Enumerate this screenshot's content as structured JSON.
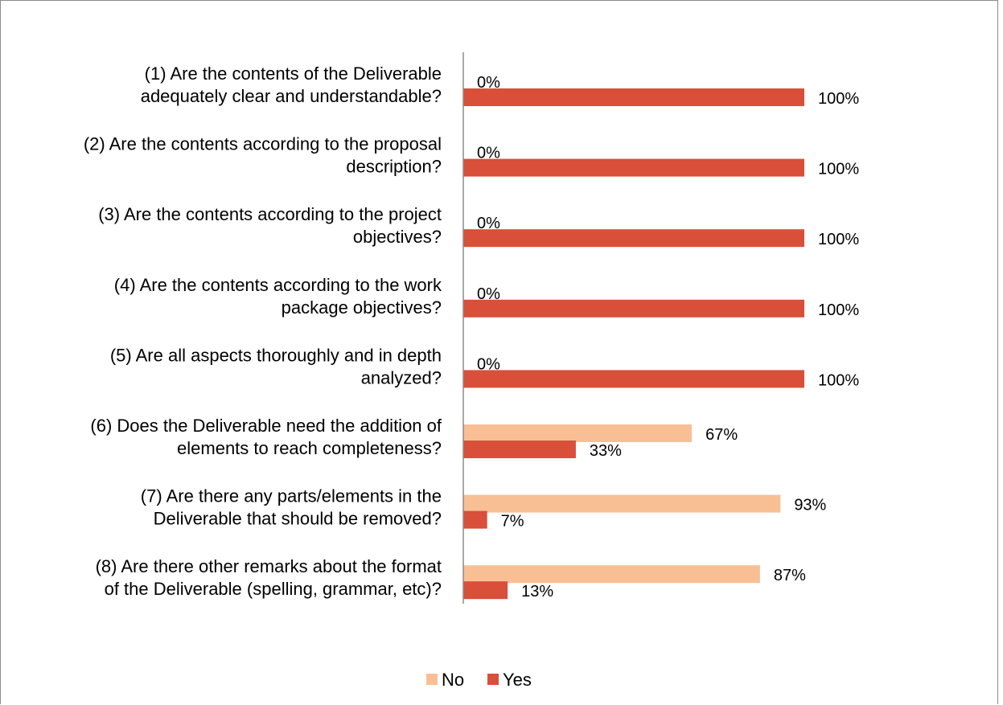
{
  "chart_data": {
    "type": "bar",
    "orientation": "horizontal",
    "categories": [
      [
        "(1)    Are the contents of the Deliverable",
        "adequately clear and understandable?"
      ],
      [
        "(2)    Are the contents according to the proposal",
        "description?"
      ],
      [
        "(3)    Are the contents according to the project",
        "objectives?"
      ],
      [
        "(4)    Are the contents according to the work",
        "package objectives?"
      ],
      [
        "(5)    Are all aspects thoroughly and in depth",
        "analyzed?"
      ],
      [
        "(6)    Does the Deliverable need the addition of",
        "elements to reach completeness?"
      ],
      [
        "(7)    Are there any parts/elements in the",
        "Deliverable that should be removed?"
      ],
      [
        "(8)    Are there other remarks about the format",
        "of the Deliverable (spelling, grammar, etc)?"
      ]
    ],
    "series": [
      {
        "name": "No",
        "color": "#f8bf95",
        "values": [
          0,
          0,
          0,
          0,
          0,
          67,
          93,
          87
        ],
        "labels": [
          "0%",
          "0%",
          "0%",
          "0%",
          "0%",
          "67%",
          "93%",
          "87%"
        ]
      },
      {
        "name": "Yes",
        "color": "#d94f3a",
        "values": [
          100,
          100,
          100,
          100,
          100,
          33,
          7,
          13
        ],
        "labels": [
          "100%",
          "100%",
          "100%",
          "100%",
          "100%",
          "33%",
          "7%",
          "13%"
        ]
      }
    ],
    "xlim": [
      0,
      100
    ],
    "grid": false,
    "legend": "bottom-center",
    "axis_color": "#8c8c8c"
  }
}
